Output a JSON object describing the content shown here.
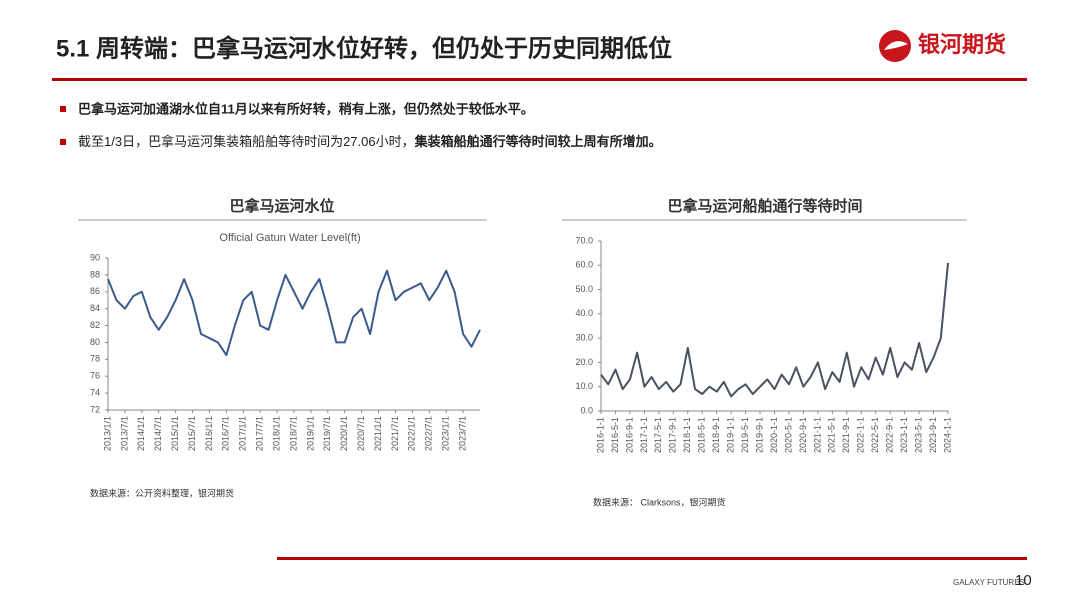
{
  "header": {
    "title": "5.1 周转端：巴拿马运河水位好转，但仍处于历史同期低位",
    "logo": "银河期货"
  },
  "bullets": [
    {
      "text": "巴拿马运河加通湖水位自11月以来有所好转，稍有上涨，但仍然处于较低水平。"
    },
    {
      "normal": "截至1/3日，巴拿马运河集装箱船舶等待时间为27.06小时，",
      "bold": "集装箱船舶通行等待时间较上周有所增加。"
    }
  ],
  "chart_data": [
    {
      "type": "line",
      "title": "巴拿马运河水位",
      "subtitle": "Official Gatun Water Level(ft)",
      "source": "数据来源：公开资料整理，银河期货",
      "color": "#3b5a8c",
      "categories": [
        "2013/1/1",
        null,
        "2013/7/1",
        null,
        "2014/1/1",
        null,
        "2014/7/1",
        null,
        "2015/1/1",
        null,
        "2015/7/1",
        null,
        "2016/1/1",
        null,
        "2016/7/1",
        null,
        "2017/1/1",
        null,
        "2017/7/1",
        null,
        "2018/1/1",
        null,
        "2018/7/1",
        null,
        "2019/1/1",
        null,
        "2019/7/1",
        null,
        "2020/1/1",
        null,
        "2020/7/1",
        null,
        "2021/1/1",
        null,
        "2021/7/1",
        null,
        "2022/1/1",
        null,
        "2022/7/1",
        null,
        "2023/1/1",
        null,
        "2023/7/1",
        null,
        null
      ],
      "values": [
        87.5,
        85,
        84,
        85.5,
        86,
        83,
        81.5,
        83,
        85,
        87.5,
        85,
        81,
        80.5,
        80,
        78.5,
        82,
        85,
        86,
        82,
        81.5,
        85,
        88,
        86,
        84,
        86,
        87.5,
        84,
        80,
        80,
        83,
        84,
        81,
        86,
        88.5,
        85,
        86,
        86.5,
        87,
        85,
        86.5,
        88.5,
        86,
        81,
        79.5,
        81.5
      ],
      "ylim": [
        72,
        90
      ],
      "yticks": [
        72,
        74,
        76,
        78,
        80,
        82,
        84,
        86,
        88,
        90
      ]
    },
    {
      "type": "line",
      "title": "巴拿马运河船舶通行等待时间",
      "source": "数据来源： Clarksons，银河期货",
      "color": "#4a5262",
      "categories": [
        "2016-1-1",
        null,
        "2016-5-1",
        null,
        "2016-9-1",
        null,
        "2017-1-1",
        null,
        "2017-5-1",
        null,
        "2017-9-1",
        null,
        "2018-1-1",
        null,
        "2018-5-1",
        null,
        "2018-9-1",
        null,
        "2019-1-1",
        null,
        "2019-5-1",
        null,
        "2019-9-1",
        null,
        "2020-1-1",
        null,
        "2020-5-1",
        null,
        "2020-9-1",
        null,
        "2021-1-1",
        null,
        "2021-5-1",
        null,
        "2021-9-1",
        null,
        "2022-1-1",
        null,
        "2022-5-1",
        null,
        "2022-9-1",
        null,
        "2023-1-1",
        null,
        "2023-5-1",
        null,
        "2023-9-1",
        null,
        "2024-1-1"
      ],
      "values": [
        15,
        11,
        17,
        9,
        13,
        24,
        10,
        14,
        9,
        12,
        8,
        11,
        26,
        9,
        7,
        10,
        8,
        12,
        6,
        9,
        11,
        7,
        10,
        13,
        9,
        15,
        11,
        18,
        10,
        14,
        20,
        9,
        16,
        12,
        24,
        10,
        18,
        13,
        22,
        15,
        26,
        14,
        20,
        17,
        28,
        16,
        22,
        30,
        61
      ],
      "ylim": [
        0,
        70
      ],
      "yticks": [
        {
          "value": 0,
          "label": "0.0"
        },
        {
          "value": 10,
          "label": "10.0"
        },
        {
          "value": 20,
          "label": "20.0"
        },
        {
          "value": 30,
          "label": "30.0"
        },
        {
          "value": 40,
          "label": "40.0"
        },
        {
          "value": 50,
          "label": "50.0"
        },
        {
          "value": 60,
          "label": "60.0"
        },
        {
          "value": 70,
          "label": "70.0"
        }
      ]
    }
  ],
  "footer": {
    "brand": "GALAXY FUTURES",
    "page": "10"
  }
}
